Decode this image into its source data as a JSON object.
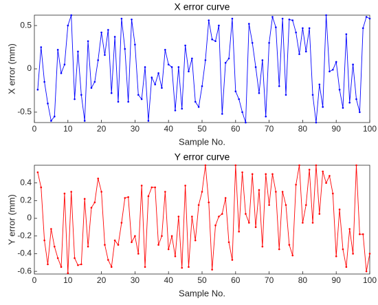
{
  "chart_data": [
    {
      "type": "line",
      "title": "X error curve",
      "x_label": "Sample No.",
      "y_label": "X error (mm)",
      "x": [
        1,
        2,
        3,
        4,
        5,
        6,
        7,
        8,
        9,
        10,
        11,
        12,
        13,
        14,
        15,
        16,
        17,
        18,
        19,
        20,
        21,
        22,
        23,
        24,
        25,
        26,
        27,
        28,
        29,
        30,
        31,
        32,
        33,
        34,
        35,
        36,
        37,
        38,
        39,
        40,
        41,
        42,
        43,
        44,
        45,
        46,
        47,
        48,
        49,
        50,
        51,
        52,
        53,
        54,
        55,
        56,
        57,
        58,
        59,
        60,
        61,
        62,
        63,
        64,
        65,
        66,
        67,
        68,
        69,
        70,
        71,
        72,
        73,
        74,
        75,
        76,
        77,
        78,
        79,
        80,
        81,
        82,
        83,
        84,
        85,
        86,
        87,
        88,
        89,
        90,
        91,
        92,
        93,
        94,
        95,
        96,
        97,
        98,
        99,
        100
      ],
      "series": [
        {
          "name": "X error",
          "color": "#0000ff",
          "values": [
            -0.24,
            0.25,
            -0.15,
            -0.4,
            -0.6,
            -0.55,
            0.22,
            -0.05,
            0.05,
            0.5,
            0.62,
            -0.35,
            0.2,
            -0.3,
            -0.6,
            0.32,
            -0.22,
            -0.15,
            0.1,
            0.42,
            0.16,
            0.45,
            -0.28,
            0.37,
            -0.38,
            0.58,
            0.23,
            -0.38,
            0.57,
            0.28,
            -0.3,
            -0.35,
            0.02,
            -0.6,
            -0.1,
            -0.18,
            -0.05,
            -0.22,
            0.22,
            0.05,
            0.02,
            -0.48,
            0.02,
            -0.46,
            0.27,
            -0.03,
            0.12,
            -0.38,
            -0.44,
            -0.2,
            0.1,
            0.56,
            0.34,
            0.32,
            0.5,
            -0.52,
            0.07,
            0.12,
            0.58,
            -0.26,
            -0.35,
            -0.5,
            -0.62,
            0.52,
            0.3,
            0.02,
            -0.28,
            0.1,
            -0.55,
            0.3,
            0.6,
            0.48,
            -0.2,
            0.58,
            -0.3,
            0.57,
            0.56,
            0.42,
            0.17,
            0.47,
            0.2,
            0.47,
            -0.3,
            -0.62,
            -0.18,
            -0.44,
            0.62,
            -0.03,
            -0.01,
            0.08,
            -0.24,
            -0.45,
            0.4,
            -0.39,
            0.05,
            -0.35,
            -0.5,
            0.47,
            0.6,
            0.58
          ]
        }
      ],
      "xlim": [
        0,
        100
      ],
      "xticks": [
        0,
        10,
        20,
        30,
        40,
        50,
        60,
        70,
        80,
        90,
        100
      ],
      "ylim": [
        -0.62,
        0.62
      ],
      "yticks": [
        -0.5,
        0,
        0.5
      ]
    },
    {
      "type": "line",
      "title": "Y error curve",
      "x_label": "Sample No.",
      "y_label": "Y error (mm)",
      "x": [
        1,
        2,
        3,
        4,
        5,
        6,
        7,
        8,
        9,
        10,
        11,
        12,
        13,
        14,
        15,
        16,
        17,
        18,
        19,
        20,
        21,
        22,
        23,
        24,
        25,
        26,
        27,
        28,
        29,
        30,
        31,
        32,
        33,
        34,
        35,
        36,
        37,
        38,
        39,
        40,
        41,
        42,
        43,
        44,
        45,
        46,
        47,
        48,
        49,
        50,
        51,
        52,
        53,
        54,
        55,
        56,
        57,
        58,
        59,
        60,
        61,
        62,
        63,
        64,
        65,
        66,
        67,
        68,
        69,
        70,
        71,
        72,
        73,
        74,
        75,
        76,
        77,
        78,
        79,
        80,
        81,
        82,
        83,
        84,
        85,
        86,
        87,
        88,
        89,
        90,
        91,
        92,
        93,
        94,
        95,
        96,
        97,
        98,
        99,
        100
      ],
      "series": [
        {
          "name": "Y error",
          "color": "#ff0000",
          "values": [
            0.52,
            0.35,
            -0.25,
            -0.52,
            -0.12,
            -0.32,
            -0.45,
            -0.55,
            0.28,
            -0.62,
            0.3,
            -0.45,
            -0.53,
            -0.52,
            0.22,
            -0.32,
            0.12,
            0.18,
            0.45,
            0.3,
            -0.3,
            -0.47,
            -0.55,
            -0.25,
            -0.3,
            -0.05,
            0.23,
            0.24,
            -0.27,
            -0.2,
            -0.4,
            0.37,
            -0.55,
            0.25,
            0.35,
            0.35,
            -0.3,
            -0.2,
            0.3,
            -0.35,
            -0.2,
            -0.43,
            0.02,
            -0.56,
            0.37,
            -0.55,
            0.02,
            -0.25,
            0.15,
            0.3,
            0.6,
            0.18,
            -0.58,
            -0.08,
            0.02,
            0.05,
            0.23,
            -0.27,
            -0.47,
            0.6,
            -0.15,
            0.52,
            0.05,
            -0.05,
            0.5,
            -0.1,
            0.32,
            -0.32,
            0.5,
            0.15,
            0.5,
            0.3,
            -0.35,
            0.3,
            0.15,
            -0.3,
            -0.42,
            0.38,
            0.6,
            -0.05,
            0.15,
            0.55,
            -0.05,
            0.6,
            0.05,
            0.53,
            0.4,
            0.48,
            0.28,
            -0.43,
            0.1,
            -0.35,
            -0.55,
            -0.12,
            -0.4,
            0.6,
            -0.18,
            -0.18,
            -0.6,
            -0.4
          ]
        }
      ],
      "xlim": [
        0,
        100
      ],
      "xticks": [
        0,
        10,
        20,
        30,
        40,
        50,
        60,
        70,
        80,
        90,
        100
      ],
      "ylim": [
        -0.63,
        0.6
      ],
      "yticks": [
        -0.6,
        -0.4,
        -0.2,
        0,
        0.2,
        0.4
      ]
    }
  ]
}
